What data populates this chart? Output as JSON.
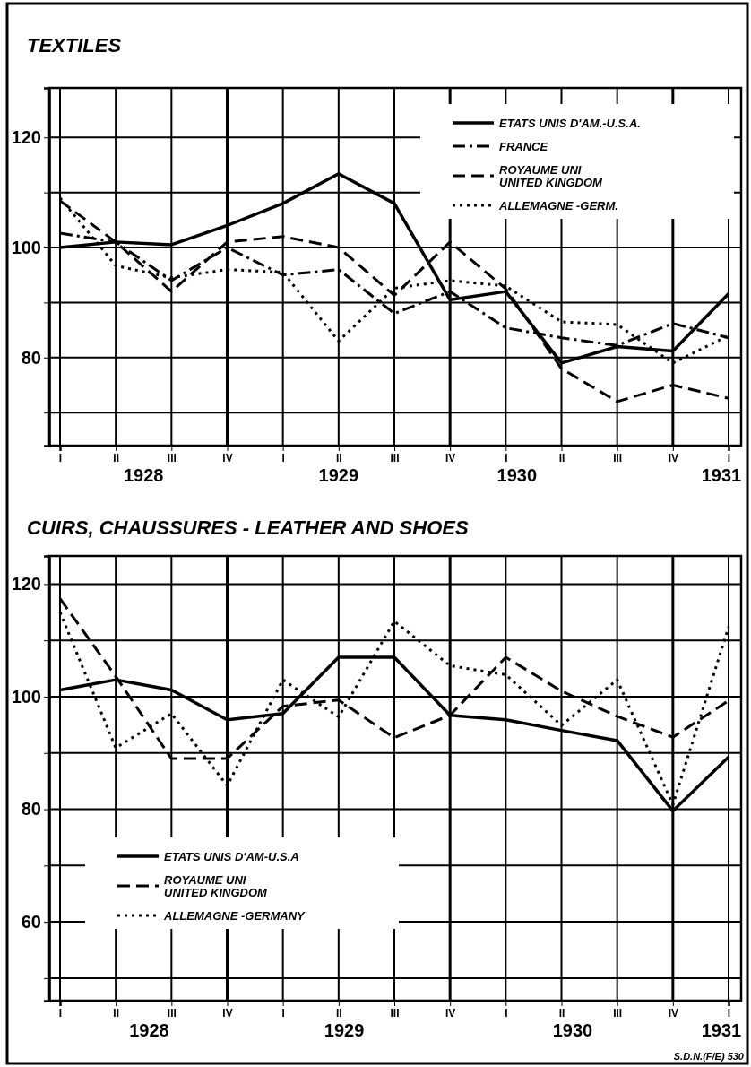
{
  "chart_data": [
    {
      "type": "line",
      "title": "TEXTILES",
      "categories": [
        "I",
        "II",
        "III",
        "IV",
        "I",
        "II",
        "III",
        "IV",
        "I",
        "II",
        "III",
        "IV",
        "I"
      ],
      "series": [
        {
          "name": "ETATS UNIS D'AM.-U.S.A.",
          "color": "#000000",
          "line_style": "solid",
          "values": [
            100,
            101,
            100.5,
            104,
            108,
            113.4,
            108,
            90.5,
            92,
            79,
            82,
            81.2,
            91.6
          ]
        },
        {
          "name": "FRANCE",
          "color": "#000000",
          "line_style": "dashdot",
          "values": [
            102.6,
            101,
            94,
            100,
            95,
            96,
            88,
            92,
            85.4,
            83.6,
            82.2,
            86.2,
            83.6
          ]
        },
        {
          "name": "ROYAUME UNI\nUNITED KINGDOM",
          "color": "#000000",
          "line_style": "dashed",
          "values": [
            108.5,
            101,
            92,
            101,
            102,
            100,
            91.3,
            101,
            92.5,
            78,
            72,
            75,
            72.6
          ]
        },
        {
          "name": "ALLEMAGNE -GERM.",
          "color": "#000000",
          "line_style": "dotted",
          "values": [
            109,
            96.7,
            94.5,
            96,
            95.5,
            83,
            92.6,
            94,
            93,
            86.5,
            86,
            79,
            84
          ]
        }
      ],
      "ylim": [
        64,
        129
      ],
      "yticks": [
        {
          "value": 70,
          "label": null
        },
        80,
        {
          "value": 90,
          "label": null
        },
        100,
        {
          "value": 110,
          "label": null
        },
        120
      ],
      "grid": true,
      "legend": "top right",
      "marker": "none",
      "annotations": [
        "1928",
        "1929",
        "1930",
        "1931"
      ]
    },
    {
      "type": "line",
      "title": "CUIRS, CHAUSSURES - LEATHER AND SHOES",
      "categories": [
        "I",
        "II",
        "III",
        "IV",
        "I",
        "II",
        "III",
        "IV",
        "I",
        "II",
        "III",
        "IV",
        "I"
      ],
      "series": [
        {
          "name": "ETATS UNIS D'AM-U.S.A",
          "color": "#000000",
          "line_style": "solid",
          "values": [
            101.2,
            103,
            101.2,
            95.9,
            97,
            107,
            107,
            96.7,
            95.9,
            94,
            92.2,
            79.7,
            89.3
          ]
        },
        {
          "name": "ROYAUME UNI\nUNITED KINGDOM",
          "color": "#000000",
          "line_style": "dashed",
          "values": [
            117.4,
            103.6,
            89,
            89,
            98.3,
            99.4,
            92.7,
            96.7,
            107,
            101,
            96.5,
            92.8,
            99.3
          ]
        },
        {
          "name": "ALLEMAGNE -GERMANY",
          "color": "#000000",
          "line_style": "dotted",
          "values": [
            115,
            90.9,
            97,
            84.2,
            103,
            96.4,
            113.4,
            105.5,
            103.9,
            94.9,
            103,
            80.8,
            112.4
          ]
        }
      ],
      "ylim": [
        46,
        125
      ],
      "yticks": [
        {
          "value": 50,
          "label": null
        },
        60,
        {
          "value": 70,
          "label": null
        },
        80,
        {
          "value": 90,
          "label": null
        },
        100,
        {
          "value": 110,
          "label": null
        },
        120
      ],
      "grid": true,
      "legend": "bottom left",
      "marker": "none",
      "annotations": [
        "1928",
        "1929",
        "1930",
        "1931",
        "S.D.N.(F/E) 530"
      ]
    }
  ]
}
